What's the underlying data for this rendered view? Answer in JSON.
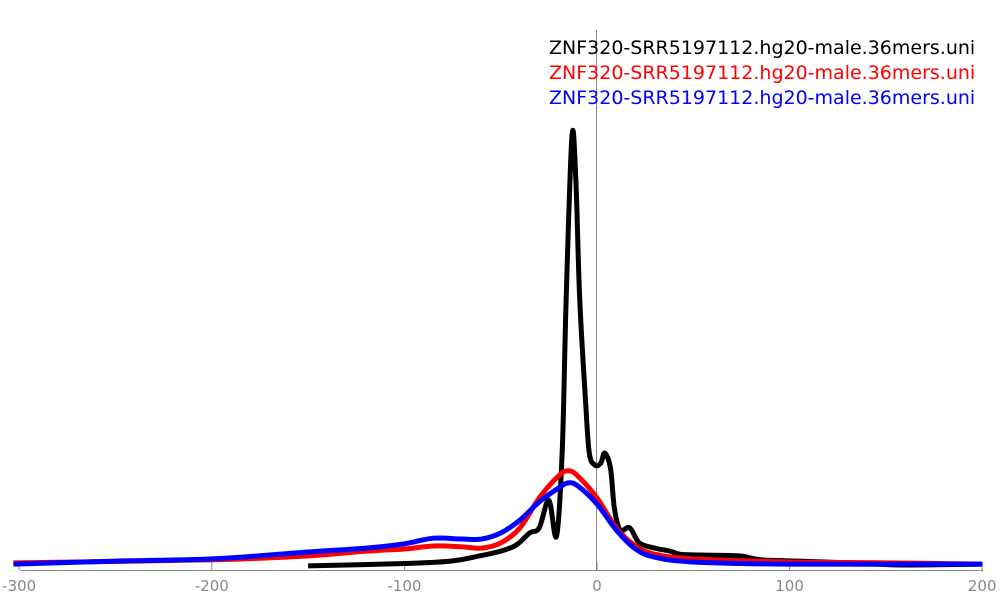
{
  "chart_data": {
    "type": "line",
    "title": "",
    "xlabel": "",
    "ylabel": "",
    "xlim": [
      -303,
      209
    ],
    "ylim": [
      0,
      130
    ],
    "x_ticks": [
      -300,
      -200,
      -100,
      0,
      100,
      200
    ],
    "x_tick_labels": [
      "-300",
      "-200",
      "-100",
      "0",
      "100",
      "200"
    ],
    "y_axis_visible": false,
    "grid": false,
    "vertical_reference_line_x": 0,
    "legend_placement": "top-right",
    "series": [
      {
        "name": "ZNF320-SRR5197112.hg20-male.36mers.uni",
        "color": "#000000",
        "x": [
          -150,
          -102,
          -76,
          -61,
          -50,
          -42,
          -35,
          -30,
          -25,
          -21,
          -18,
          -16,
          -13,
          -11,
          -9,
          -6,
          -4,
          -1,
          2,
          4,
          7,
          9,
          12,
          17,
          22,
          30,
          38,
          43,
          53,
          74,
          85,
          105,
          131,
          157,
          199
        ],
        "y": [
          0.5,
          1,
          1.6,
          2.8,
          3.9,
          5.3,
          8.1,
          9.3,
          15.7,
          7.4,
          27.8,
          62.5,
          100,
          90,
          62.5,
          39,
          26.6,
          23.8,
          24.3,
          26.6,
          23.1,
          13.9,
          8.8,
          9.3,
          5.8,
          4.6,
          3.9,
          3.2,
          3,
          2.8,
          1.9,
          1.6,
          1.2,
          0.7,
          0.9
        ]
      },
      {
        "name": "ZNF320-SRR5197112.hg20-male.36mers.uni",
        "color": "#ff0000",
        "x": [
          -303,
          -200,
          -150,
          -120,
          -100,
          -85,
          -70,
          -60,
          -50,
          -40,
          -30,
          -20,
          -15,
          -10,
          0,
          10,
          20,
          30,
          50,
          100,
          150,
          200
        ],
        "y": [
          1.2,
          1.9,
          2.8,
          3.9,
          4.4,
          5.1,
          4.9,
          4.6,
          5.8,
          9.3,
          16.2,
          21.3,
          22.5,
          21.3,
          16.2,
          9.3,
          5.1,
          3.2,
          2.1,
          1.4,
          1.2,
          0.9
        ]
      },
      {
        "name": "ZNF320-SRR5197112.hg20-male.36mers.uni",
        "color": "#0000ff",
        "x": [
          -303,
          -250,
          -200,
          -150,
          -120,
          -100,
          -85,
          -70,
          -60,
          -50,
          -40,
          -30,
          -20,
          -15,
          -10,
          0,
          10,
          20,
          30,
          50,
          100,
          200
        ],
        "y": [
          0.9,
          1.6,
          2.1,
          3.7,
          4.6,
          5.6,
          6.9,
          6.7,
          6.7,
          8.1,
          11.1,
          15.3,
          18.5,
          19.7,
          19,
          14.8,
          8.8,
          4.4,
          2.5,
          1.4,
          0.9,
          0.9
        ]
      }
    ]
  }
}
